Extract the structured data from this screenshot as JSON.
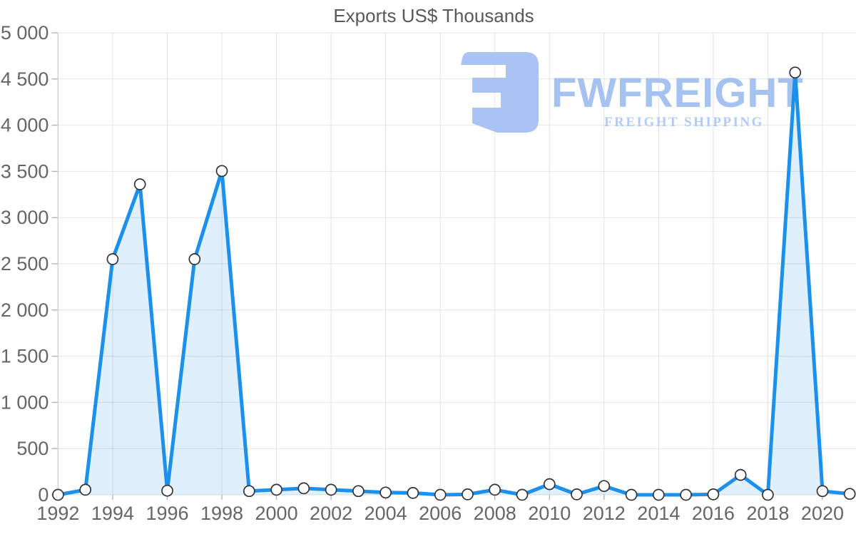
{
  "page": {
    "title": "Exports US$ Thousands"
  },
  "watermark": {
    "brand": "FWFREIGHT",
    "tagline": "FREIGHT SHIPPING"
  },
  "colors": {
    "line": "#1b90ec",
    "fill": "#1b90ec",
    "marker_fill": "#ffffff",
    "marker_stroke": "#333333",
    "grid": "#e4e4e4",
    "axis_spine": "#cccccc",
    "tick": "#b5b5b5",
    "axis_label": "#666666",
    "title": "#595959",
    "watermark_logo": "#a9c3f2",
    "watermark_brand": "#a5c2f0",
    "watermark_tagline": "#b3cbf4"
  },
  "chart_data": {
    "type": "area",
    "title": "Exports US$ Thousands",
    "xlabel": "",
    "ylabel": "",
    "x": [
      1992,
      1993,
      1994,
      1995,
      1996,
      1997,
      1998,
      1999,
      2000,
      2001,
      2002,
      2003,
      2004,
      2005,
      2006,
      2007,
      2008,
      2009,
      2010,
      2011,
      2012,
      2013,
      2014,
      2015,
      2016,
      2017,
      2018,
      2019,
      2020,
      2021
    ],
    "series": [
      {
        "name": "Exports US$ Thousands",
        "values": [
          0,
          55,
          2550,
          3360,
          45,
          2550,
          3505,
          40,
          55,
          70,
          55,
          40,
          25,
          20,
          0,
          5,
          55,
          0,
          115,
          5,
          95,
          0,
          0,
          0,
          5,
          215,
          0,
          4570,
          40,
          10
        ]
      }
    ],
    "ylim": [
      0,
      5000
    ],
    "ytick_step": 500,
    "y_tick_labels": [
      "0",
      "500",
      "1 000",
      "1 500",
      "2 000",
      "2 500",
      "3 000",
      "3 500",
      "4 000",
      "4 500",
      "5 000"
    ],
    "x_tick_labels": [
      "1992",
      "1994",
      "1996",
      "1998",
      "2000",
      "2002",
      "2004",
      "2006",
      "2008",
      "2010",
      "2012",
      "2014",
      "2016",
      "2018",
      "2020"
    ],
    "grid": true,
    "legend": false,
    "marker": "circle"
  }
}
